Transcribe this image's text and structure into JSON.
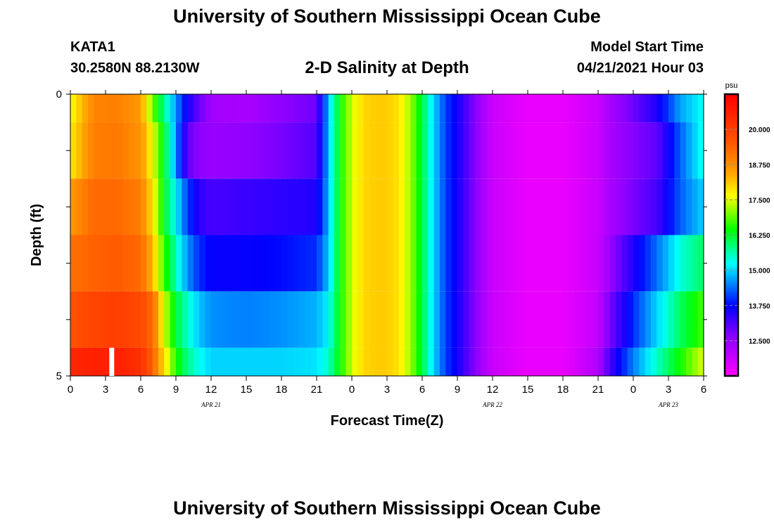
{
  "header": {
    "title": "University of Southern Mississippi Ocean Cube",
    "station": "KATA1",
    "coords": "30.2580N  88.2130W",
    "subtitle": "2-D Salinity at Depth",
    "start_label": "Model Start Time",
    "start_value": "04/21/2021 Hour 03"
  },
  "footer": {
    "title": "University of Southern Mississippi Ocean Cube"
  },
  "chart_data": {
    "type": "heatmap",
    "title": "2-D Salinity at Depth",
    "xlabel": "Forecast Time(Z)",
    "ylabel": "Depth (ft)",
    "x_start_hour": 0,
    "x_end_hour": 54,
    "x_tick_labels": [
      "0",
      "3",
      "6",
      "9",
      "12",
      "15",
      "18",
      "21",
      "0",
      "3",
      "6",
      "9",
      "12",
      "15",
      "18",
      "21",
      "0",
      "3",
      "6"
    ],
    "date_labels": [
      {
        "hour": 12,
        "label": "APR  21"
      },
      {
        "hour": 36,
        "label": "APR  22"
      },
      {
        "hour": 51,
        "label": "APR  23"
      }
    ],
    "ylim": [
      0,
      5
    ],
    "y_tick_labels": [
      "0",
      "",
      "",
      "",
      "",
      "5"
    ],
    "colorbar": {
      "unit": "psu",
      "min": 11.25,
      "max": 21.25,
      "tick_labels": [
        "20.000",
        "18.750",
        "17.500",
        "16.250",
        "15.000",
        "13.750",
        "12.500"
      ],
      "tick_values": [
        20.0,
        18.75,
        17.5,
        16.25,
        15.0,
        13.75,
        12.5
      ]
    },
    "current_time_hour": 3.5,
    "depth_layers": [
      "0-0.5",
      "0.5-1.5",
      "1.5-2.5",
      "2.5-3.5",
      "3.5-4.5",
      "4.5-5"
    ],
    "hours": [
      0,
      2,
      4,
      6,
      7,
      8,
      9,
      10,
      11,
      12,
      15,
      18,
      21,
      22,
      23,
      24,
      25,
      26,
      27,
      28,
      29,
      30,
      31,
      32,
      33,
      34,
      35,
      36,
      39,
      42,
      45,
      46,
      48,
      50,
      52,
      54
    ],
    "salinity_psu": [
      [
        17.6,
        18.9,
        19.0,
        18.6,
        17.0,
        15.8,
        14.6,
        13.6,
        12.9,
        12.4,
        12.3,
        12.6,
        12.9,
        14.8,
        16.5,
        17.4,
        18.0,
        18.1,
        18.1,
        17.9,
        17.2,
        16.2,
        15.0,
        14.1,
        13.6,
        13.0,
        12.4,
        11.9,
        11.5,
        11.5,
        11.9,
        12.3,
        12.9,
        13.5,
        14.7,
        15.3
      ],
      [
        17.8,
        19.0,
        19.1,
        18.7,
        17.6,
        16.3,
        14.6,
        13.0,
        12.6,
        12.5,
        12.6,
        12.8,
        13.1,
        14.8,
        16.5,
        17.4,
        18.0,
        18.1,
        18.1,
        17.9,
        17.2,
        16.2,
        15.0,
        14.1,
        13.6,
        13.0,
        12.4,
        11.9,
        11.5,
        11.5,
        11.9,
        12.3,
        12.7,
        13.0,
        14.3,
        15.4
      ],
      [
        18.6,
        19.3,
        19.3,
        19.0,
        17.9,
        16.3,
        15.2,
        14.1,
        13.4,
        13.2,
        13.3,
        13.4,
        13.5,
        14.8,
        16.5,
        17.4,
        18.0,
        18.1,
        18.1,
        17.9,
        17.2,
        16.2,
        15.0,
        14.1,
        13.6,
        13.0,
        12.4,
        11.9,
        11.5,
        11.5,
        11.9,
        12.3,
        12.8,
        13.2,
        14.3,
        15.0
      ],
      [
        19.2,
        19.4,
        19.5,
        19.3,
        18.3,
        16.7,
        15.6,
        14.6,
        14.0,
        13.7,
        13.7,
        13.8,
        14.0,
        14.9,
        16.5,
        17.4,
        18.0,
        18.1,
        18.1,
        17.9,
        17.2,
        16.2,
        15.0,
        14.1,
        13.6,
        13.0,
        12.4,
        11.9,
        11.5,
        11.5,
        11.9,
        12.5,
        13.5,
        14.4,
        15.4,
        16.0
      ],
      [
        19.6,
        19.9,
        20.0,
        19.8,
        19.3,
        17.5,
        16.2,
        15.5,
        14.9,
        14.6,
        14.5,
        14.6,
        14.8,
        15.2,
        16.5,
        17.4,
        18.0,
        18.1,
        18.1,
        17.9,
        17.2,
        16.2,
        15.0,
        14.1,
        13.6,
        13.0,
        12.4,
        11.9,
        11.5,
        11.5,
        12.0,
        12.8,
        14.0,
        15.0,
        16.0,
        16.8
      ],
      [
        20.5,
        20.6,
        20.6,
        20.3,
        19.4,
        17.9,
        16.6,
        15.8,
        15.3,
        15.0,
        15.0,
        15.0,
        15.1,
        15.5,
        16.5,
        17.4,
        18.0,
        18.1,
        18.1,
        17.9,
        17.2,
        16.2,
        15.0,
        14.1,
        13.6,
        13.0,
        12.4,
        11.9,
        11.5,
        11.5,
        12.2,
        13.2,
        14.5,
        15.5,
        16.5,
        17.5
      ]
    ]
  }
}
